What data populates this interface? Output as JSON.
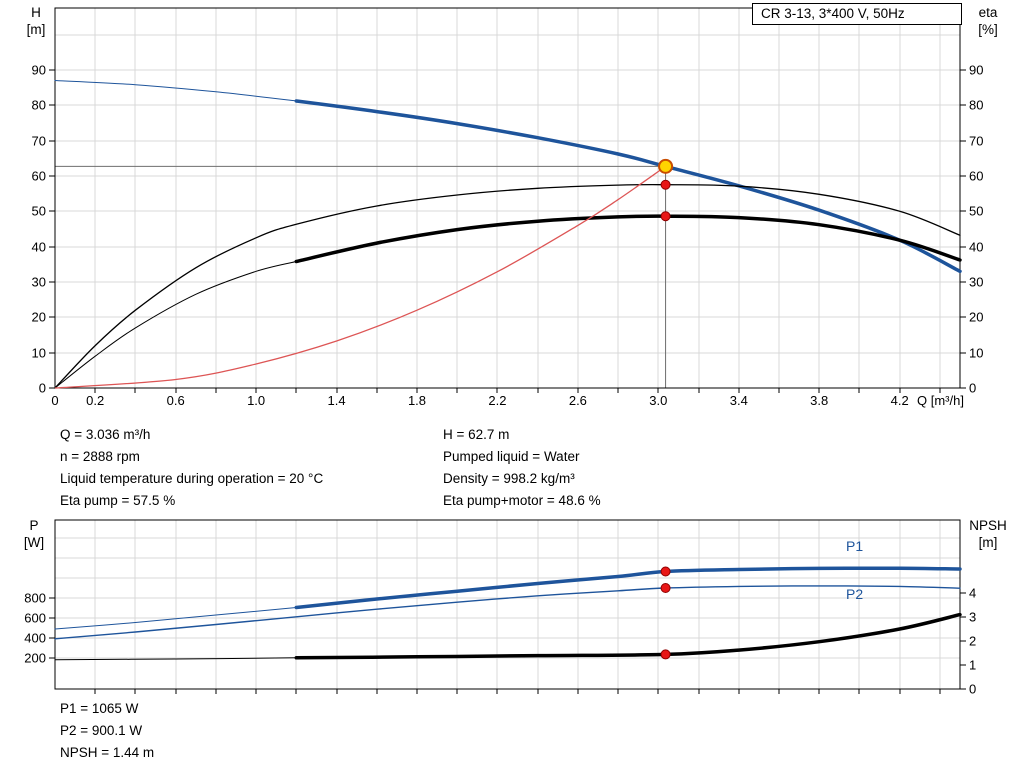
{
  "info": {
    "left": [
      "Q = 3.036 m³/h",
      "n = 2888 rpm",
      "Liquid temperature during operation = 20 °C",
      "Eta pump = 57.5 %"
    ],
    "right": [
      "H = 62.7 m",
      "Pumped liquid = Water",
      "Density = 998.2 kg/m³",
      "Eta pump+motor = 48.6 %"
    ],
    "bottom": [
      "P1 = 1065 W",
      "P2 = 900.1 W",
      "NPSH = 1.44 m"
    ]
  },
  "chart_data": [
    {
      "type": "line",
      "id": "qh",
      "title": "CR 3-13, 3*400 V, 50Hz",
      "xlabel": "Q [m³/h]",
      "xlim": [
        0,
        4.5
      ],
      "x_tick_values": [
        0,
        0.2,
        0.6,
        1.0,
        1.4,
        1.8,
        2.2,
        2.6,
        3.0,
        3.4,
        3.8,
        4.2
      ],
      "x_tick_labels": [
        "0",
        "0.2",
        "0.6",
        "1.0",
        "1.4",
        "1.8",
        "2.2",
        "2.6",
        "3.0",
        "3.4",
        "3.8",
        "4.2"
      ],
      "left_axis": {
        "title": [
          "H",
          "[m]"
        ],
        "lim": [
          0,
          107.5
        ],
        "ticks": [
          0,
          10,
          20,
          30,
          40,
          50,
          60,
          70,
          80,
          90
        ]
      },
      "right_axis": {
        "title": [
          "eta",
          "[%]"
        ],
        "lim": [
          0,
          107.5
        ],
        "ticks": [
          0,
          10,
          20,
          30,
          40,
          50,
          60,
          70,
          80,
          90
        ]
      },
      "grid": true,
      "crosshair": {
        "x": 3.036,
        "y": 62.7
      },
      "series": [
        {
          "name": "head-curve",
          "display": "H",
          "color": "#1e549b",
          "axis": "left",
          "width": 3.5,
          "thin_until": 1.2,
          "points": [
            [
              0,
              87
            ],
            [
              0.4,
              85.8
            ],
            [
              0.8,
              83.8
            ],
            [
              1.2,
              81.2
            ],
            [
              1.6,
              78.2
            ],
            [
              2.0,
              74.8
            ],
            [
              2.4,
              70.8
            ],
            [
              2.8,
              66.2
            ],
            [
              3.036,
              62.7
            ],
            [
              3.4,
              57.2
            ],
            [
              3.8,
              50.3
            ],
            [
              4.2,
              41.8
            ],
            [
              4.5,
              33
            ]
          ]
        },
        {
          "name": "eta-pump-curve",
          "display": "Eta pump",
          "color": "#000000",
          "axis": "left",
          "width": 1.3,
          "points": [
            [
              0,
              0
            ],
            [
              0.2,
              12
            ],
            [
              0.4,
              22
            ],
            [
              0.7,
              34
            ],
            [
              1.0,
              42.5
            ],
            [
              1.2,
              46.3
            ],
            [
              1.6,
              51.5
            ],
            [
              2.0,
              54.6
            ],
            [
              2.4,
              56.5
            ],
            [
              2.8,
              57.4
            ],
            [
              3.036,
              57.5
            ],
            [
              3.4,
              57.1
            ],
            [
              3.8,
              54.8
            ],
            [
              4.2,
              50
            ],
            [
              4.5,
              43.2
            ]
          ]
        },
        {
          "name": "eta-pump-motor-curve",
          "display": "Eta pump+motor",
          "color": "#000000",
          "axis": "left",
          "width": 3.5,
          "thin_until": 1.2,
          "points": [
            [
              0,
              0
            ],
            [
              0.2,
              9
            ],
            [
              0.4,
              17
            ],
            [
              0.7,
              26.5
            ],
            [
              1.0,
              33
            ],
            [
              1.2,
              35.8
            ],
            [
              1.6,
              41
            ],
            [
              2.0,
              44.8
            ],
            [
              2.4,
              47.2
            ],
            [
              2.8,
              48.4
            ],
            [
              3.036,
              48.6
            ],
            [
              3.4,
              48.2
            ],
            [
              3.8,
              46.2
            ],
            [
              4.2,
              41.8
            ],
            [
              4.5,
              36.2
            ]
          ]
        },
        {
          "name": "system-curve",
          "display": "System curve",
          "color": "#dd5555",
          "axis": "left",
          "width": 1.3,
          "points": [
            [
              0,
              0
            ],
            [
              0.6,
              2.4
            ],
            [
              1.0,
              6.8
            ],
            [
              1.4,
              13.3
            ],
            [
              1.8,
              22
            ],
            [
              2.2,
              32.9
            ],
            [
              2.6,
              46
            ],
            [
              2.8,
              53.3
            ],
            [
              3.036,
              62.7
            ]
          ]
        }
      ],
      "markers": [
        {
          "name": "duty-point",
          "style": "duty",
          "axis": "left",
          "x": 3.036,
          "y": 62.7
        },
        {
          "name": "eta-pump-point",
          "style": "red",
          "axis": "left",
          "x": 3.036,
          "y": 57.5
        },
        {
          "name": "eta-pump-motor-point",
          "style": "red",
          "axis": "left",
          "x": 3.036,
          "y": 48.6
        }
      ]
    },
    {
      "type": "line",
      "id": "power",
      "title": "",
      "xlabel": "",
      "xlim": [
        0,
        4.5
      ],
      "left_axis": {
        "title": [
          "P",
          "[W]"
        ],
        "lim": [
          -110,
          1580
        ],
        "ticks": [
          200,
          400,
          600,
          800
        ]
      },
      "right_axis": {
        "title": [
          "NPSH",
          "[m]"
        ],
        "lim": [
          0,
          7.04
        ],
        "ticks": [
          0,
          1,
          2,
          3,
          4
        ]
      },
      "grid": true,
      "series": [
        {
          "name": "p1-curve",
          "display": "P1",
          "label": "P1",
          "color": "#1e549b",
          "axis": "left",
          "width": 3.5,
          "thin_until": 1.2,
          "points": [
            [
              0,
              490
            ],
            [
              0.4,
              555
            ],
            [
              0.8,
              630
            ],
            [
              1.2,
              705
            ],
            [
              1.6,
              790
            ],
            [
              2.0,
              868
            ],
            [
              2.4,
              945
            ],
            [
              2.8,
              1015
            ],
            [
              3.036,
              1065
            ],
            [
              3.4,
              1085
            ],
            [
              3.8,
              1096
            ],
            [
              4.2,
              1098
            ],
            [
              4.5,
              1090
            ]
          ]
        },
        {
          "name": "p2-curve",
          "display": "P2",
          "label": "P2",
          "color": "#1e549b",
          "axis": "left",
          "width": 1.4,
          "points": [
            [
              0,
              392
            ],
            [
              0.4,
              460
            ],
            [
              0.8,
              535
            ],
            [
              1.2,
              612
            ],
            [
              1.6,
              688
            ],
            [
              2.0,
              758
            ],
            [
              2.4,
              822
            ],
            [
              2.8,
              872
            ],
            [
              3.036,
              900
            ],
            [
              3.4,
              916
            ],
            [
              3.8,
              921
            ],
            [
              4.2,
              916
            ],
            [
              4.5,
              898
            ]
          ]
        },
        {
          "name": "npsh-curve",
          "display": "NPSH",
          "color": "#000000",
          "axis": "right",
          "width": 3.5,
          "thin_until": 1.2,
          "points": [
            [
              0,
              1.22
            ],
            [
              0.6,
              1.25
            ],
            [
              1.2,
              1.3
            ],
            [
              1.8,
              1.34
            ],
            [
              2.4,
              1.39
            ],
            [
              3.036,
              1.44
            ],
            [
              3.4,
              1.62
            ],
            [
              3.8,
              1.97
            ],
            [
              4.2,
              2.5
            ],
            [
              4.5,
              3.1
            ]
          ]
        }
      ],
      "markers": [
        {
          "name": "p1-point",
          "style": "red",
          "axis": "left",
          "x": 3.036,
          "y": 1065
        },
        {
          "name": "p2-point",
          "style": "red",
          "axis": "left",
          "x": 3.036,
          "y": 900
        },
        {
          "name": "npsh-point",
          "style": "red",
          "axis": "right",
          "x": 3.036,
          "y": 1.44
        }
      ]
    }
  ]
}
